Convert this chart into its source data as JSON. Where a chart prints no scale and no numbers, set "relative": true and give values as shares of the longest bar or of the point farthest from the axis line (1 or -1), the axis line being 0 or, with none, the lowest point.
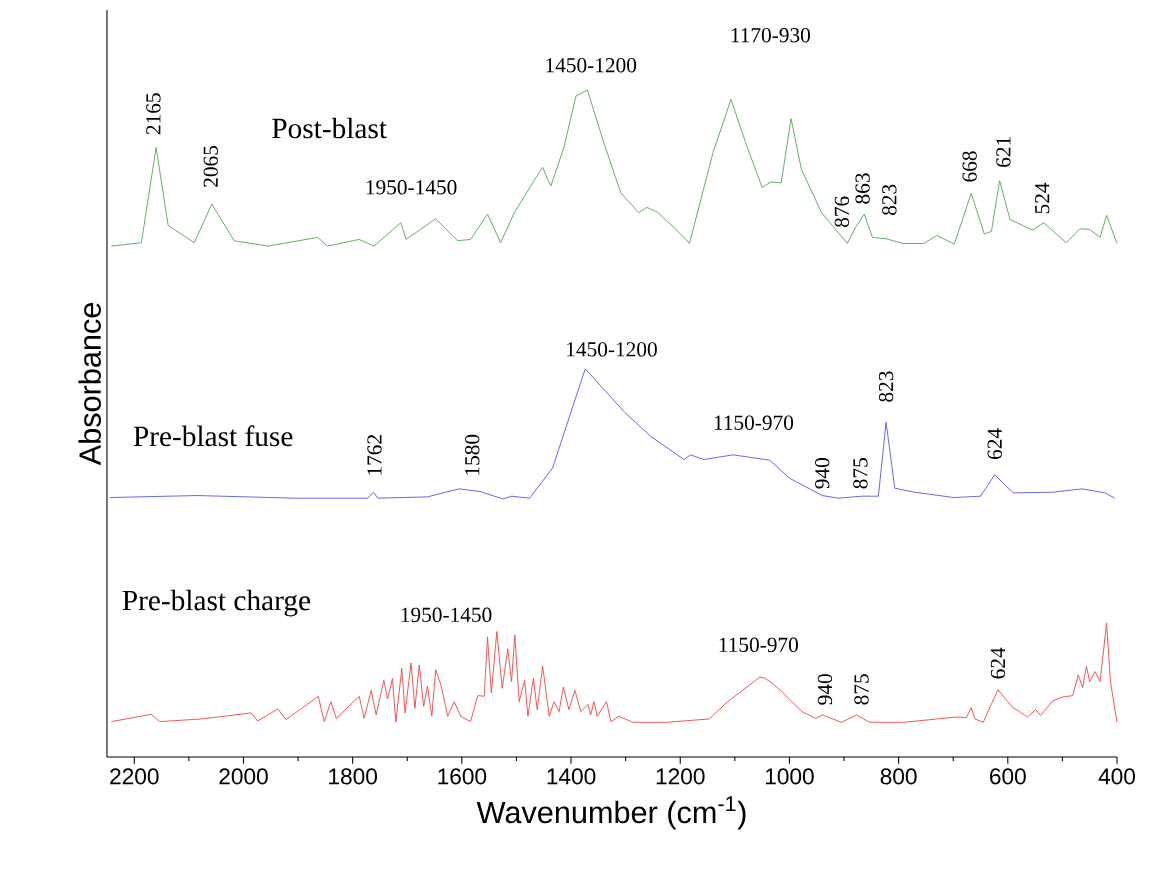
{
  "chart_data": {
    "type": "line",
    "relative": true,
    "xlabel": "Wavenumber (cm$^{-1}$)",
    "ylabel": "Absorbance",
    "xlim": [
      2250,
      400
    ],
    "xticks": [
      2200,
      2000,
      1800,
      1600,
      1400,
      1200,
      1000,
      800,
      600,
      400
    ],
    "series": [
      {
        "name": "Post-blast",
        "color": "#5ca85c",
        "x": [
          2242,
          2187,
          2160,
          2138,
          2090,
          2058,
          2017,
          1955,
          1864,
          1846,
          1788,
          1761,
          1712,
          1702,
          1648,
          1608,
          1584,
          1553,
          1529,
          1504,
          1468,
          1452,
          1437,
          1413,
          1391,
          1370,
          1340,
          1309,
          1276,
          1261,
          1242,
          1208,
          1183,
          1140,
          1107,
          1078,
          1050,
          1034,
          1015,
          997,
          978,
          941,
          894,
          879,
          863,
          848,
          823,
          792,
          754,
          742,
          730,
          698,
          667,
          643,
          630,
          615,
          596,
          555,
          534,
          493,
          468,
          450,
          431,
          419,
          400
        ],
        "values": [
          0.766,
          0.771,
          0.914,
          0.797,
          0.771,
          0.829,
          0.774,
          0.766,
          0.779,
          0.766,
          0.776,
          0.766,
          0.801,
          0.776,
          0.807,
          0.774,
          0.776,
          0.814,
          0.771,
          0.816,
          0.864,
          0.884,
          0.856,
          0.914,
          0.991,
          1.0,
          0.921,
          0.846,
          0.816,
          0.824,
          0.817,
          0.791,
          0.77,
          0.906,
          0.986,
          0.916,
          0.854,
          0.862,
          0.861,
          0.957,
          0.881,
          0.816,
          0.77,
          0.794,
          0.814,
          0.779,
          0.777,
          0.77,
          0.77,
          0.776,
          0.782,
          0.769,
          0.845,
          0.784,
          0.788,
          0.864,
          0.806,
          0.79,
          0.801,
          0.771,
          0.792,
          0.791,
          0.779,
          0.812,
          0.77
        ]
      },
      {
        "name": "Pre-blast fuse",
        "color": "#5b5bef",
        "x": [
          2245,
          2085,
          1904,
          1772,
          1762,
          1754,
          1663,
          1605,
          1567,
          1525,
          1509,
          1476,
          1434,
          1374,
          1302,
          1253,
          1193,
          1181,
          1157,
          1103,
          1036,
          1000,
          940,
          910,
          868,
          837,
          823,
          807,
          771,
          699,
          650,
          624,
          590,
          518,
          464,
          422,
          404
        ],
        "values": [
          0.389,
          0.392,
          0.388,
          0.388,
          0.397,
          0.388,
          0.39,
          0.402,
          0.398,
          0.387,
          0.391,
          0.388,
          0.433,
          0.582,
          0.517,
          0.48,
          0.446,
          0.453,
          0.446,
          0.453,
          0.445,
          0.418,
          0.392,
          0.388,
          0.391,
          0.391,
          0.502,
          0.403,
          0.397,
          0.389,
          0.391,
          0.423,
          0.396,
          0.397,
          0.402,
          0.396,
          0.388
        ]
      },
      {
        "name": "Pre-blast charge",
        "color": "#f24a4a",
        "x": [
          2242,
          2169,
          2154,
          2077,
          1986,
          1974,
          1937,
          1922,
          1863,
          1852,
          1840,
          1830,
          1788,
          1779,
          1766,
          1757,
          1743,
          1736,
          1727,
          1721,
          1710,
          1704,
          1693,
          1686,
          1678,
          1670,
          1663,
          1655,
          1648,
          1638,
          1626,
          1614,
          1602,
          1584,
          1571,
          1559,
          1553,
          1546,
          1536,
          1526,
          1516,
          1509,
          1503,
          1495,
          1485,
          1479,
          1469,
          1462,
          1452,
          1440,
          1431,
          1422,
          1414,
          1404,
          1393,
          1382,
          1369,
          1364,
          1358,
          1352,
          1335,
          1327,
          1312,
          1287,
          1225,
          1147,
          1113,
          1076,
          1054,
          1045,
          1032,
          1014,
          977,
          952,
          939,
          905,
          877,
          853,
          791,
          729,
          692,
          676,
          667,
          660,
          645,
          618,
          592,
          564,
          549,
          540,
          518,
          499,
          481,
          471,
          463,
          456,
          450,
          440,
          431,
          419,
          412,
          400
        ],
        "values": [
          0.053,
          0.064,
          0.053,
          0.057,
          0.066,
          0.054,
          0.072,
          0.056,
          0.091,
          0.053,
          0.083,
          0.058,
          0.091,
          0.058,
          0.1,
          0.063,
          0.115,
          0.087,
          0.118,
          0.052,
          0.133,
          0.066,
          0.141,
          0.073,
          0.138,
          0.076,
          0.106,
          0.061,
          0.131,
          0.107,
          0.061,
          0.083,
          0.061,
          0.053,
          0.092,
          0.091,
          0.18,
          0.096,
          0.188,
          0.103,
          0.162,
          0.113,
          0.183,
          0.083,
          0.115,
          0.061,
          0.118,
          0.071,
          0.136,
          0.061,
          0.083,
          0.068,
          0.105,
          0.071,
          0.1,
          0.068,
          0.079,
          0.063,
          0.083,
          0.061,
          0.083,
          0.053,
          0.061,
          0.052,
          0.052,
          0.057,
          0.083,
          0.106,
          0.12,
          0.118,
          0.111,
          0.098,
          0.068,
          0.058,
          0.063,
          0.052,
          0.063,
          0.052,
          0.052,
          0.057,
          0.06,
          0.059,
          0.074,
          0.057,
          0.052,
          0.101,
          0.075,
          0.06,
          0.071,
          0.062,
          0.084,
          0.09,
          0.092,
          0.123,
          0.104,
          0.136,
          0.113,
          0.128,
          0.113,
          0.201,
          0.113,
          0.052
        ]
      }
    ],
    "annotations": [
      "2165",
      "2065",
      "1950-1450",
      "1450-1200",
      "1170-930",
      "876",
      "863",
      "823",
      "668",
      "621",
      "524",
      "1450-1200",
      "1762",
      "1580",
      "1150-970",
      "940",
      "875",
      "823",
      "624",
      "1950-1450",
      "1150-970",
      "940",
      "875",
      "624"
    ]
  }
}
